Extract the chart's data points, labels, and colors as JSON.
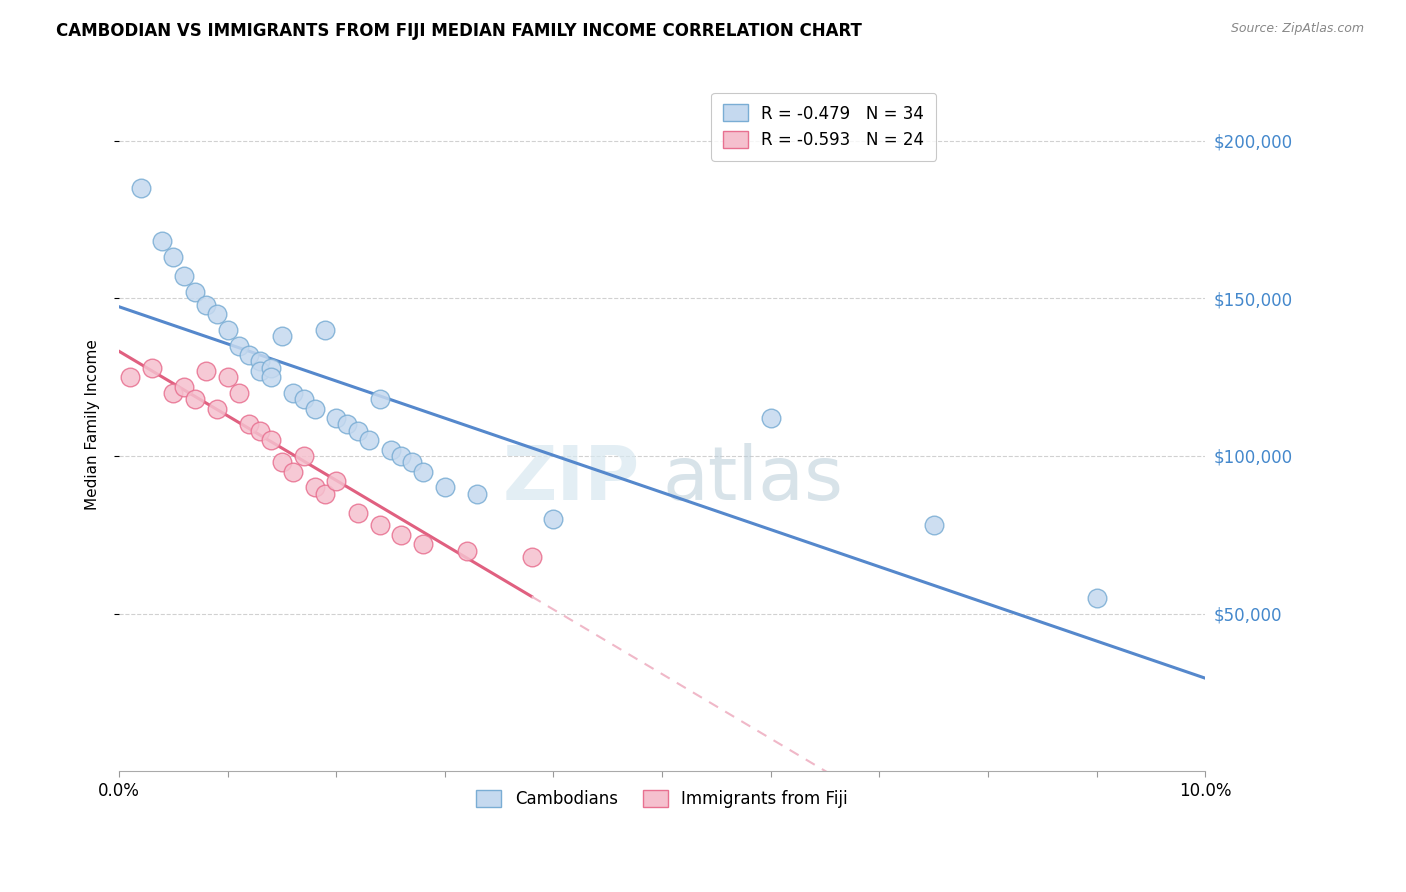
{
  "title": "CAMBODIAN VS IMMIGRANTS FROM FIJI MEDIAN FAMILY INCOME CORRELATION CHART",
  "source": "Source: ZipAtlas.com",
  "ylabel": "Median Family Income",
  "x_min": 0.0,
  "x_max": 0.1,
  "y_min": 0,
  "y_max": 220000,
  "y_ticks": [
    50000,
    100000,
    150000,
    200000
  ],
  "x_ticks": [
    0.0,
    0.01,
    0.02,
    0.03,
    0.04,
    0.05,
    0.06,
    0.07,
    0.08,
    0.09,
    0.1
  ],
  "x_tick_labels": [
    "0.0%",
    "",
    "",
    "",
    "",
    "",
    "",
    "",
    "",
    "",
    "10.0%"
  ],
  "legend_r_cambodian": "R = -0.479",
  "legend_n_cambodian": "N = 34",
  "legend_r_fiji": "R = -0.593",
  "legend_n_fiji": "N = 24",
  "color_cambodian_face": "#c5d9ef",
  "color_cambodian_edge": "#7aadd4",
  "color_fiji_face": "#f5c0ce",
  "color_fiji_edge": "#e87090",
  "color_line_cambodian": "#5588cc",
  "color_line_fiji": "#e06080",
  "color_line_fiji_dashed": "#f0b8c8",
  "watermark_zip": "ZIP",
  "watermark_atlas": "atlas",
  "cambodian_x": [
    0.002,
    0.004,
    0.005,
    0.006,
    0.007,
    0.008,
    0.009,
    0.01,
    0.011,
    0.012,
    0.013,
    0.013,
    0.014,
    0.014,
    0.015,
    0.016,
    0.017,
    0.018,
    0.019,
    0.02,
    0.021,
    0.022,
    0.023,
    0.024,
    0.025,
    0.026,
    0.027,
    0.028,
    0.03,
    0.033,
    0.04,
    0.06,
    0.075,
    0.09
  ],
  "cambodian_y": [
    185000,
    168000,
    163000,
    157000,
    152000,
    148000,
    145000,
    140000,
    135000,
    132000,
    130000,
    127000,
    128000,
    125000,
    138000,
    120000,
    118000,
    115000,
    140000,
    112000,
    110000,
    108000,
    105000,
    118000,
    102000,
    100000,
    98000,
    95000,
    90000,
    88000,
    80000,
    112000,
    78000,
    55000
  ],
  "fiji_x": [
    0.001,
    0.003,
    0.005,
    0.006,
    0.007,
    0.008,
    0.009,
    0.01,
    0.011,
    0.012,
    0.013,
    0.014,
    0.015,
    0.016,
    0.017,
    0.018,
    0.019,
    0.02,
    0.022,
    0.024,
    0.026,
    0.028,
    0.032,
    0.038
  ],
  "fiji_y": [
    125000,
    128000,
    120000,
    122000,
    118000,
    127000,
    115000,
    125000,
    120000,
    110000,
    108000,
    105000,
    98000,
    95000,
    100000,
    90000,
    88000,
    92000,
    82000,
    78000,
    75000,
    72000,
    70000,
    68000
  ]
}
